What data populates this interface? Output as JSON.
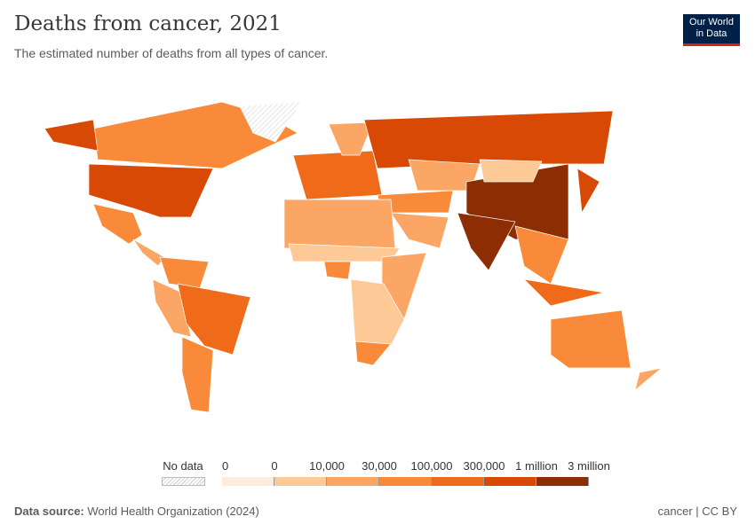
{
  "header": {
    "title": "Deaths from cancer, 2021",
    "subtitle": "The estimated number of deaths from all types of cancer.",
    "logo_line1": "Our World",
    "logo_line2": "in Data"
  },
  "legend": {
    "no_data_label": "No data",
    "no_data_color": "#ffffff",
    "tick_labels": [
      "0",
      "0",
      "10,000",
      "30,000",
      "100,000",
      "300,000",
      "1 million",
      "3 million"
    ],
    "bins": [
      {
        "from": "0",
        "to": "0",
        "color": "#fdebdd"
      },
      {
        "from": "0",
        "to": "10,000",
        "color": "#fdc997"
      },
      {
        "from": "10,000",
        "to": "30,000",
        "color": "#fca665"
      },
      {
        "from": "30,000",
        "to": "100,000",
        "color": "#f98a3a"
      },
      {
        "from": "100,000",
        "to": "300,000",
        "color": "#ef6a19"
      },
      {
        "from": "300,000",
        "to": "1 million",
        "color": "#d74904"
      },
      {
        "from": "1 million",
        "to": "3 million",
        "color": "#8c2d04"
      }
    ]
  },
  "chart_data": {
    "type": "choropleth",
    "title": "Deaths from cancer, 2021",
    "year": 2021,
    "regions": [
      {
        "name": "Canada",
        "bin": 3
      },
      {
        "name": "United States",
        "bin": 5
      },
      {
        "name": "Alaska",
        "bin": 5
      },
      {
        "name": "Mexico",
        "bin": 3
      },
      {
        "name": "Central America",
        "bin": 2
      },
      {
        "name": "Greenland",
        "bin": null
      },
      {
        "name": "Colombia/Venezuela",
        "bin": 3
      },
      {
        "name": "Peru/Bolivia",
        "bin": 2
      },
      {
        "name": "Brazil",
        "bin": 4
      },
      {
        "name": "Argentina/Chile",
        "bin": 3
      },
      {
        "name": "Western Europe",
        "bin": 4
      },
      {
        "name": "Scandinavia",
        "bin": 2
      },
      {
        "name": "Russia",
        "bin": 5
      },
      {
        "name": "Central Asia",
        "bin": 2
      },
      {
        "name": "Middle East",
        "bin": 2
      },
      {
        "name": "Turkey/Iran",
        "bin": 3
      },
      {
        "name": "China",
        "bin": 6
      },
      {
        "name": "India",
        "bin": 6
      },
      {
        "name": "Mongolia",
        "bin": 1
      },
      {
        "name": "Southeast Asia",
        "bin": 3
      },
      {
        "name": "Indonesia",
        "bin": 4
      },
      {
        "name": "Japan",
        "bin": 5
      },
      {
        "name": "North Africa",
        "bin": 2
      },
      {
        "name": "Sahel",
        "bin": 1
      },
      {
        "name": "Nigeria",
        "bin": 3
      },
      {
        "name": "East Africa",
        "bin": 2
      },
      {
        "name": "Central/Southern Africa",
        "bin": 1
      },
      {
        "name": "South Africa",
        "bin": 3
      },
      {
        "name": "Australia",
        "bin": 3
      },
      {
        "name": "New Zealand",
        "bin": 2
      }
    ]
  },
  "footer": {
    "source_label": "Data source:",
    "source": "World Health Organization (2024)",
    "right": "cancer | CC BY"
  }
}
